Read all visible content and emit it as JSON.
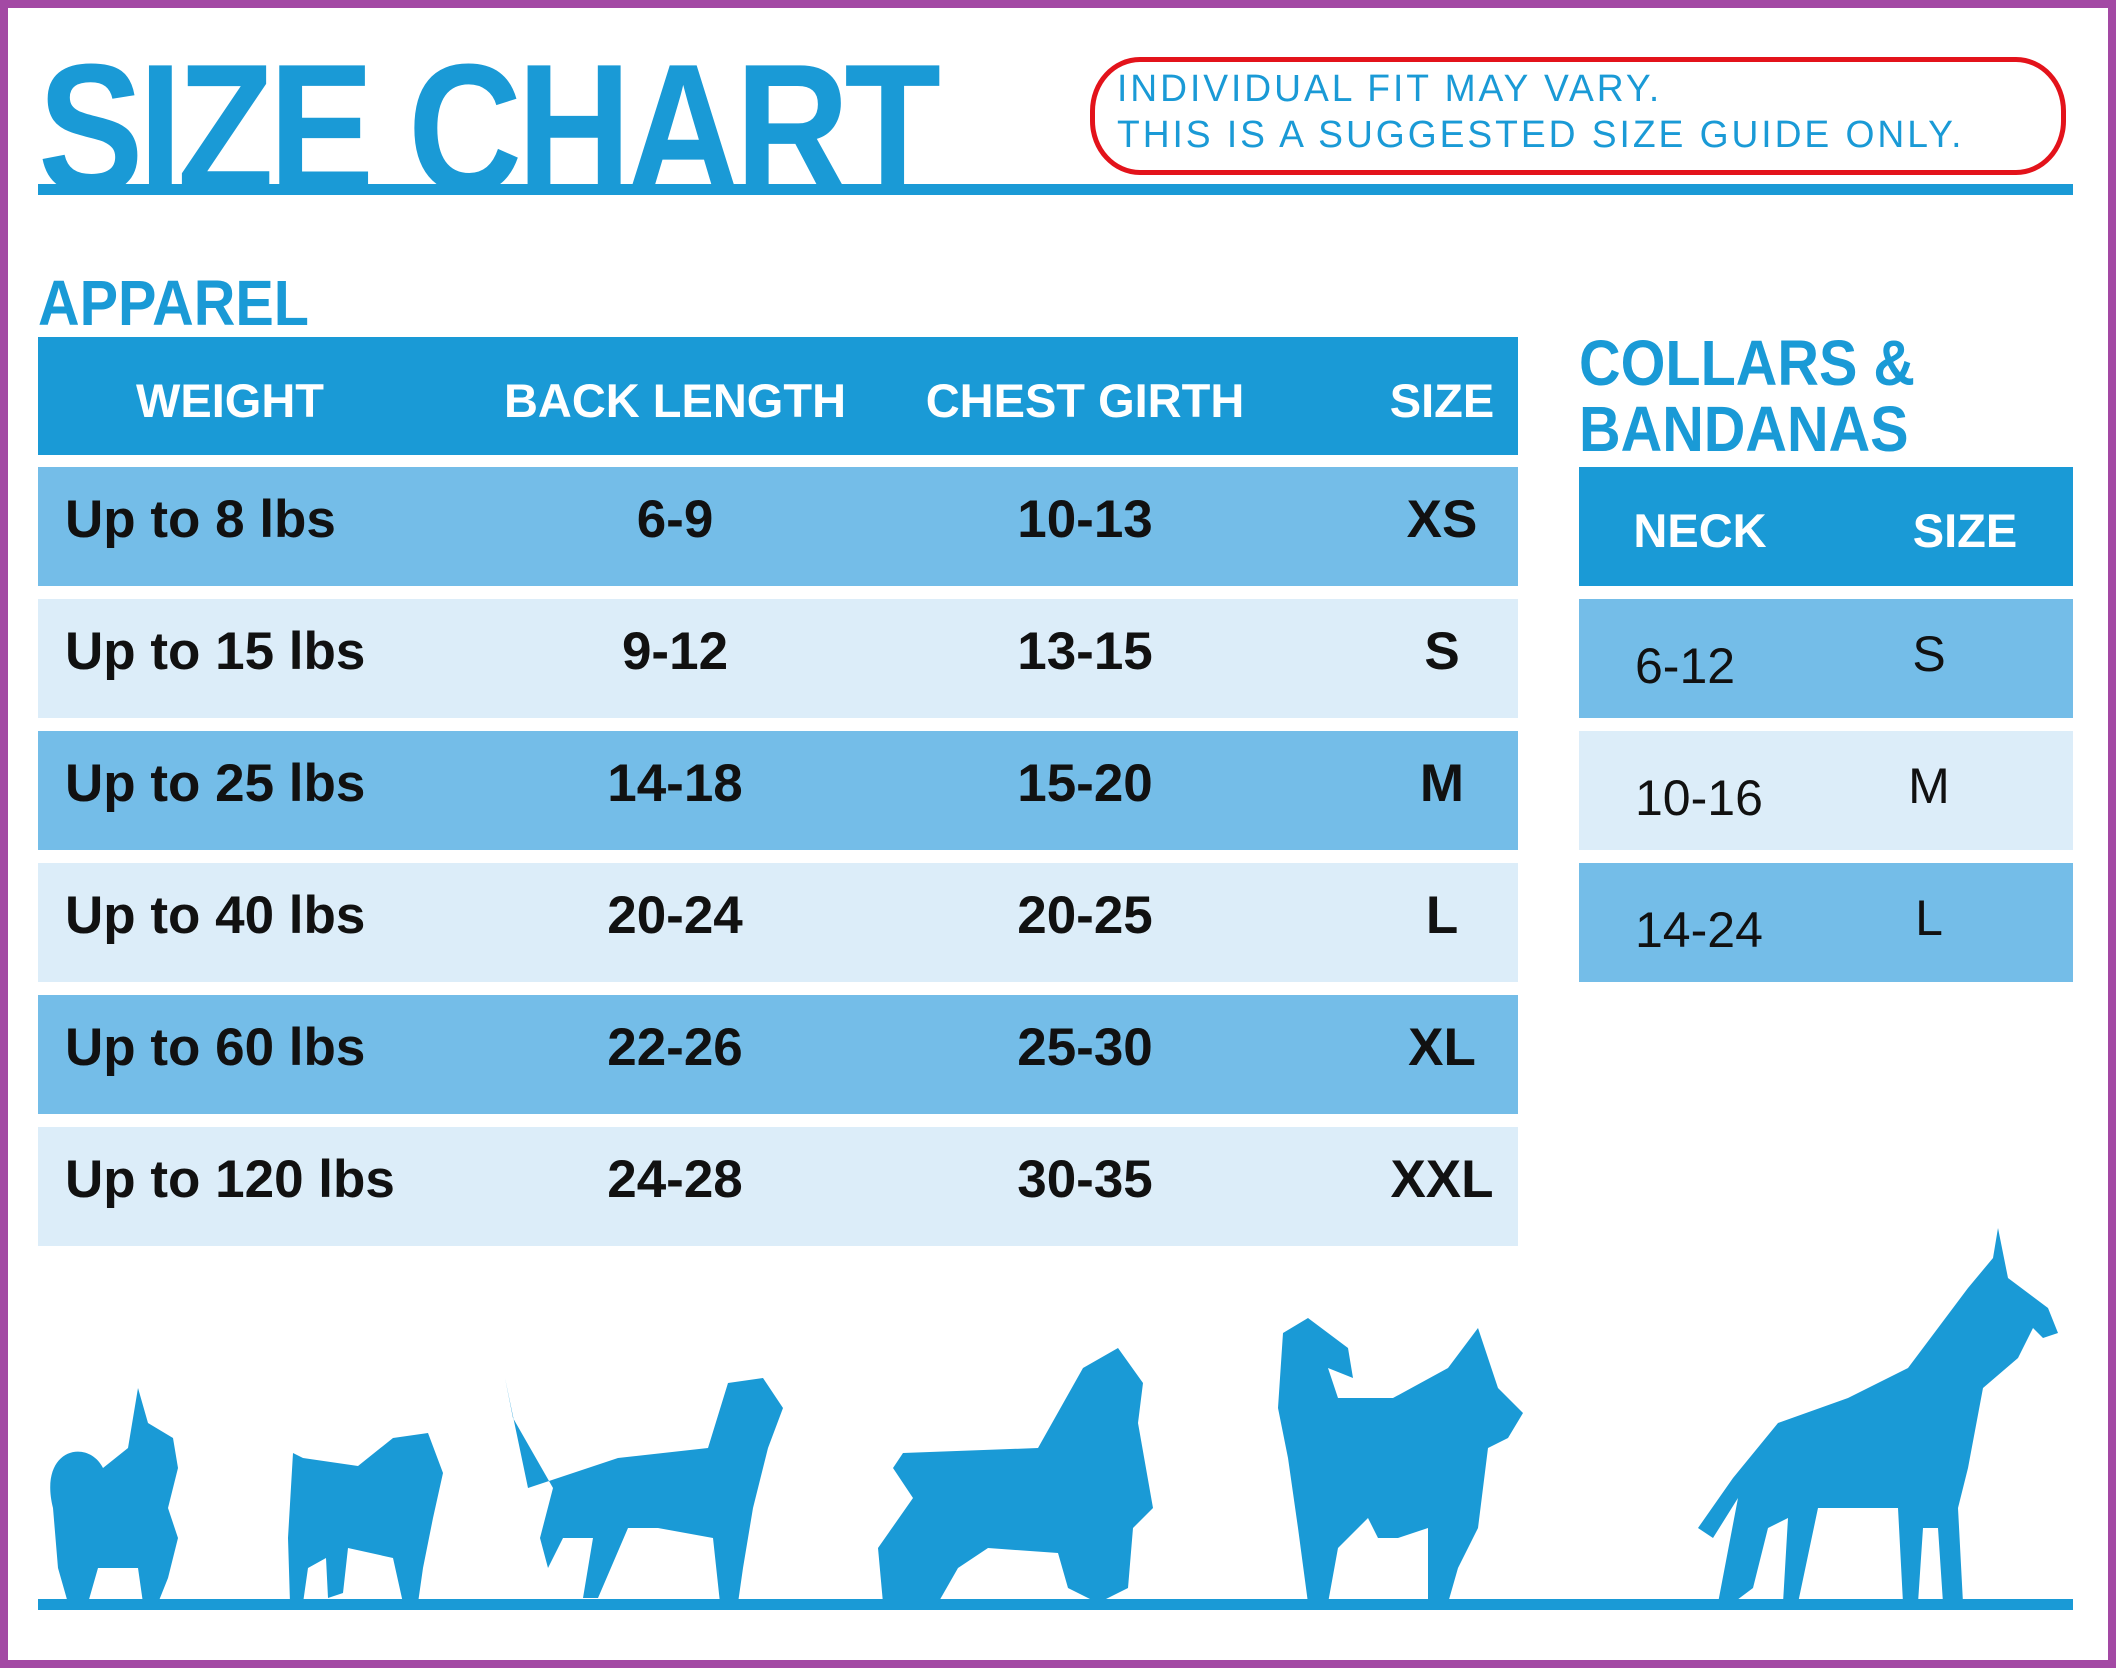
{
  "title": "SIZE CHART",
  "disclaimer": [
    "INDIVIDUAL FIT MAY VARY.",
    "THIS IS A SUGGESTED SIZE GUIDE ONLY."
  ],
  "apparel": {
    "heading": "APPAREL",
    "columns": [
      "WEIGHT",
      "BACK LENGTH",
      "CHEST GIRTH",
      "SIZE"
    ],
    "rows": [
      [
        "Up to 8 lbs",
        "6-9",
        "10-13",
        "XS"
      ],
      [
        "Up to 15 lbs",
        "9-12",
        "13-15",
        "S"
      ],
      [
        "Up to 25 lbs",
        "14-18",
        "15-20",
        "M"
      ],
      [
        "Up to 40 lbs",
        "20-24",
        "20-25",
        "L"
      ],
      [
        "Up to 60 lbs",
        "22-26",
        "25-30",
        "XL"
      ],
      [
        "Up to 120 lbs",
        "24-28",
        "30-35",
        "XXL"
      ]
    ]
  },
  "collars": {
    "heading_line1": "COLLARS &",
    "heading_line2": "BANDANAS",
    "columns": [
      "NECK",
      "SIZE"
    ],
    "rows": [
      [
        "6-12",
        "S"
      ],
      [
        "10-16",
        "M"
      ],
      [
        "14-24",
        "L"
      ]
    ]
  },
  "colors": {
    "primary": "#1a9ad6",
    "row_dark": "#74bde8",
    "row_light": "#dcedf9",
    "highlight": "#e3131b",
    "frame": "#a349a4"
  },
  "illustration": {
    "icons": [
      "pomeranian-icon",
      "pug-icon",
      "beagle-icon",
      "spaniel-icon",
      "husky-icon",
      "great-dane-icon"
    ]
  }
}
